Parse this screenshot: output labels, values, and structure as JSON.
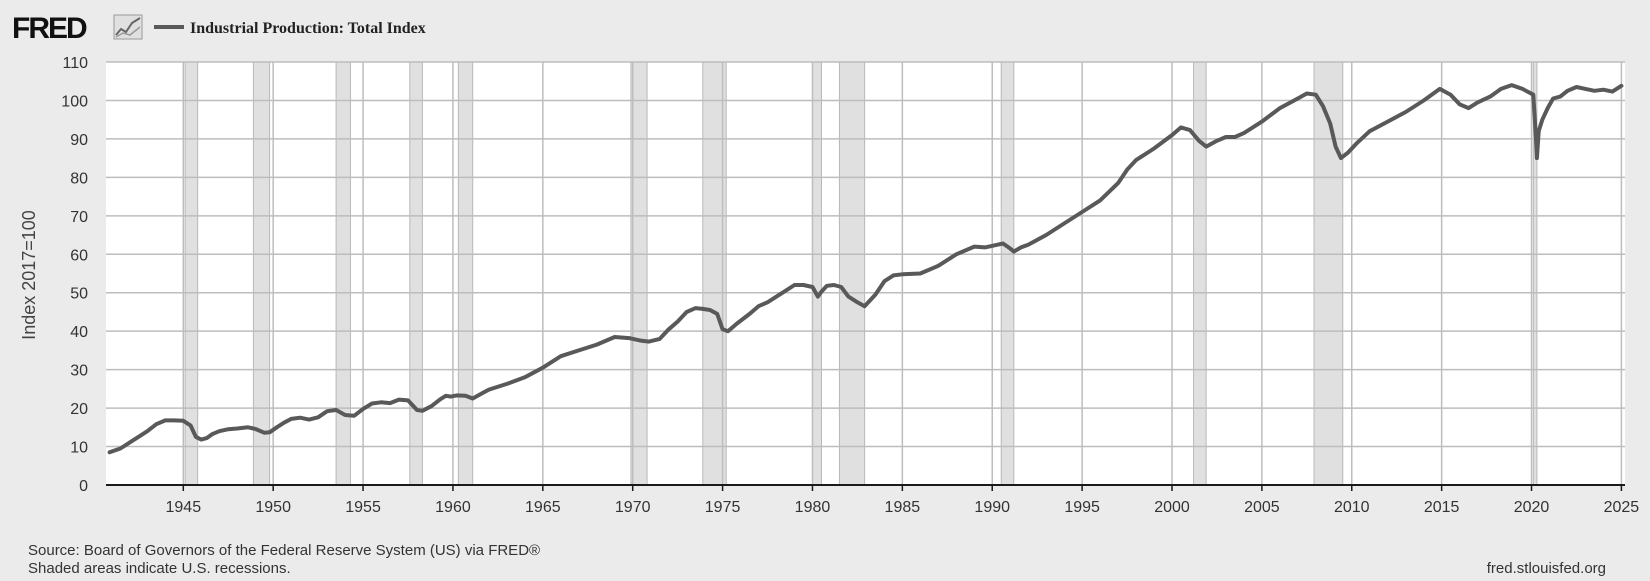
{
  "header": {
    "logo_text": "FRED",
    "legend_label": "Industrial Production: Total Index"
  },
  "footer": {
    "source": "Source: Board of Governors of the Federal Reserve System (US) via FRED®",
    "note": "Shaded areas indicate U.S. recessions.",
    "site": "fred.stlouisfed.org"
  },
  "colors": {
    "background": "#ebebeb",
    "plot_bg": "#ffffff",
    "line": "#595959",
    "recession": "#e0e0e0",
    "grid": "#bdbdbd",
    "axis": "#1a1a1a"
  },
  "chart_data": {
    "type": "line",
    "title": "Industrial Production: Total Index",
    "xlabel": "",
    "ylabel": "Index 2017=100",
    "xlim": [
      1940.7,
      2025.2
    ],
    "ylim": [
      0,
      110
    ],
    "xticks": [
      1945,
      1950,
      1955,
      1960,
      1965,
      1970,
      1975,
      1980,
      1985,
      1990,
      1995,
      2000,
      2005,
      2010,
      2015,
      2020,
      2025
    ],
    "xtick_labels": [
      "1945",
      "1950",
      "1955",
      "1960",
      "1965",
      "1970",
      "1975",
      "1980",
      "1985",
      "1990",
      "1995",
      "2000",
      "2005",
      "2010",
      "2015",
      "2020",
      "2025"
    ],
    "yticks": [
      0,
      10,
      20,
      30,
      40,
      50,
      60,
      70,
      80,
      90,
      100,
      110
    ],
    "ytick_labels": [
      "0",
      "10",
      "20",
      "30",
      "40",
      "50",
      "60",
      "70",
      "80",
      "90",
      "100",
      "110"
    ],
    "grid": true,
    "recessions": [
      [
        1945.1,
        1945.8
      ],
      [
        1948.9,
        1949.8
      ],
      [
        1953.5,
        1954.3
      ],
      [
        1957.6,
        1958.3
      ],
      [
        1960.3,
        1961.1
      ],
      [
        1969.9,
        1970.8
      ],
      [
        1973.9,
        1975.2
      ],
      [
        1980.0,
        1980.5
      ],
      [
        1981.5,
        1982.9
      ],
      [
        1990.5,
        1991.2
      ],
      [
        2001.2,
        2001.9
      ],
      [
        2007.9,
        2009.5
      ],
      [
        2020.1,
        2020.3
      ]
    ],
    "series": [
      {
        "name": "Industrial Production: Total Index",
        "x": [
          1940.9,
          1941.5,
          1942.0,
          1942.5,
          1943.0,
          1943.5,
          1944.0,
          1944.5,
          1945.0,
          1945.4,
          1945.7,
          1946.0,
          1946.3,
          1946.6,
          1947.0,
          1947.5,
          1948.0,
          1948.6,
          1949.0,
          1949.5,
          1949.8,
          1950.2,
          1950.6,
          1951.0,
          1951.5,
          1952.0,
          1952.5,
          1953.0,
          1953.5,
          1954.0,
          1954.5,
          1955.0,
          1955.5,
          1956.0,
          1956.5,
          1957.0,
          1957.5,
          1958.0,
          1958.3,
          1958.8,
          1959.3,
          1959.6,
          1959.9,
          1960.2,
          1960.7,
          1961.1,
          1961.6,
          1962.0,
          1963.0,
          1964.0,
          1965.0,
          1966.0,
          1967.0,
          1968.0,
          1969.0,
          1969.8,
          1970.5,
          1970.9,
          1971.5,
          1972.0,
          1972.5,
          1973.0,
          1973.5,
          1973.9,
          1974.3,
          1974.7,
          1975.0,
          1975.3,
          1975.8,
          1976.5,
          1977.0,
          1977.5,
          1978.0,
          1978.5,
          1979.0,
          1979.5,
          1980.0,
          1980.3,
          1980.5,
          1980.8,
          1981.2,
          1981.6,
          1982.0,
          1982.5,
          1982.9,
          1983.5,
          1984.0,
          1984.5,
          1985.0,
          1986.0,
          1987.0,
          1988.0,
          1989.0,
          1989.6,
          1990.3,
          1990.6,
          1991.0,
          1991.2,
          1991.6,
          1992.0,
          1993.0,
          1994.0,
          1995.0,
          1996.0,
          1997.0,
          1997.5,
          1998.0,
          1999.0,
          2000.0,
          2000.5,
          2001.0,
          2001.5,
          2001.9,
          2002.5,
          2003.0,
          2003.5,
          2004.0,
          2005.0,
          2006.0,
          2007.0,
          2007.5,
          2008.0,
          2008.4,
          2008.8,
          2009.1,
          2009.4,
          2009.8,
          2010.3,
          2011.0,
          2012.0,
          2013.0,
          2014.0,
          2014.9,
          2015.5,
          2016.0,
          2016.5,
          2017.0,
          2017.7,
          2018.3,
          2018.9,
          2019.5,
          2019.9,
          2020.1,
          2020.25,
          2020.3,
          2020.4,
          2020.6,
          2020.9,
          2021.2,
          2021.6,
          2022.0,
          2022.5,
          2023.0,
          2023.5,
          2024.0,
          2024.5,
          2025.0
        ],
        "y": [
          8.5,
          9.5,
          11.0,
          12.5,
          14.0,
          15.8,
          16.8,
          16.8,
          16.7,
          15.5,
          12.5,
          11.8,
          12.2,
          13.2,
          14.0,
          14.5,
          14.7,
          15.0,
          14.6,
          13.6,
          13.7,
          15.0,
          16.2,
          17.2,
          17.5,
          17.0,
          17.6,
          19.2,
          19.5,
          18.2,
          18.0,
          19.8,
          21.2,
          21.5,
          21.3,
          22.2,
          22.0,
          19.5,
          19.3,
          20.5,
          22.3,
          23.2,
          23.0,
          23.3,
          23.2,
          22.5,
          23.8,
          24.8,
          26.3,
          28.0,
          30.5,
          33.5,
          35.0,
          36.5,
          38.5,
          38.2,
          37.5,
          37.3,
          38.0,
          40.5,
          42.5,
          45.0,
          46.0,
          45.8,
          45.5,
          44.5,
          40.5,
          40.0,
          42.0,
          44.5,
          46.5,
          47.5,
          49.0,
          50.5,
          52.0,
          52.0,
          51.5,
          49.0,
          50.3,
          51.8,
          52.0,
          51.5,
          49.0,
          47.5,
          46.5,
          49.5,
          53.0,
          54.5,
          54.8,
          55.0,
          57.0,
          60.0,
          62.0,
          61.8,
          62.5,
          62.8,
          61.5,
          60.7,
          61.8,
          62.5,
          65.0,
          68.0,
          71.0,
          74.0,
          78.5,
          82.0,
          84.5,
          87.5,
          91.0,
          93.0,
          92.3,
          89.5,
          88.0,
          89.5,
          90.5,
          90.5,
          91.5,
          94.5,
          98.0,
          100.5,
          101.8,
          101.5,
          98.5,
          94.0,
          88.0,
          85.0,
          86.5,
          89.0,
          92.0,
          94.5,
          97.0,
          100.0,
          103.0,
          101.5,
          99.0,
          98.0,
          99.5,
          101.0,
          103.0,
          104.0,
          103.0,
          102.0,
          101.5,
          90.0,
          85.0,
          92.0,
          95.0,
          98.0,
          100.5,
          101.0,
          102.5,
          103.5,
          103.0,
          102.5,
          102.8,
          102.3,
          103.8
        ]
      }
    ]
  }
}
